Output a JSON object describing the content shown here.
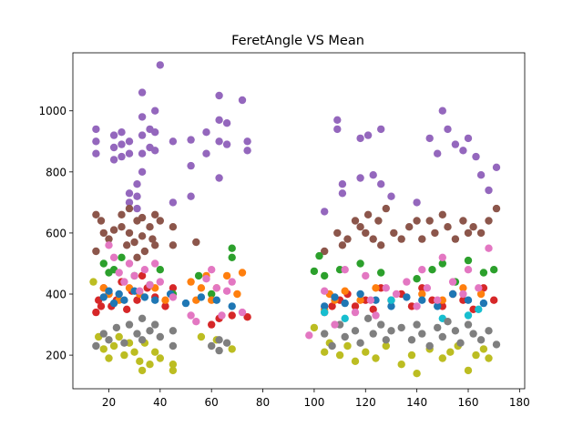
{
  "chart_data": {
    "type": "scatter",
    "title": "FeretAngle VS Mean",
    "xlabel": "",
    "ylabel": "",
    "xlim": [
      6,
      182
    ],
    "ylim": [
      90,
      1190
    ],
    "xticks": [
      20,
      40,
      60,
      80,
      100,
      120,
      140,
      160,
      180
    ],
    "yticks": [
      200,
      400,
      600,
      800,
      1000
    ],
    "grid": false,
    "legend": "none",
    "colors": [
      "#9467bd",
      "#8c564b",
      "#d62728",
      "#2ca02c",
      "#ff7f0e",
      "#1f77b4",
      "#bcbd22",
      "#17becf",
      "#7f7f7f",
      "#e377c2"
    ],
    "series": [
      {
        "color": "#9467bd",
        "x": [
          15,
          15,
          15,
          22,
          22,
          22,
          25,
          25,
          25,
          28,
          28,
          28,
          28,
          31,
          31,
          31,
          33,
          33,
          33,
          33,
          33,
          36,
          36,
          38,
          38,
          38,
          40,
          45,
          45,
          52,
          52,
          52,
          58,
          58,
          63,
          63,
          63,
          63,
          66,
          66,
          72,
          74,
          74,
          104,
          109,
          109,
          111,
          111,
          118,
          118,
          121,
          123,
          126,
          126,
          130,
          140,
          145,
          148,
          150,
          152,
          155,
          158,
          160,
          163,
          165,
          168,
          171
        ],
        "y": [
          940,
          900,
          860,
          920,
          880,
          840,
          930,
          890,
          850,
          900,
          860,
          730,
          700,
          760,
          720,
          680,
          1060,
          980,
          920,
          860,
          800,
          940,
          880,
          1000,
          930,
          870,
          1150,
          900,
          700,
          905,
          820,
          720,
          930,
          860,
          1050,
          970,
          900,
          780,
          960,
          890,
          1035,
          900,
          870,
          670,
          970,
          940,
          760,
          730,
          910,
          780,
          920,
          790,
          940,
          760,
          720,
          700,
          910,
          860,
          1000,
          940,
          890,
          870,
          910,
          850,
          790,
          740,
          815
        ]
      },
      {
        "color": "#8c564b",
        "x": [
          15,
          15,
          17,
          18,
          20,
          22,
          25,
          25,
          27,
          28,
          28,
          30,
          31,
          31,
          33,
          33,
          34,
          36,
          37,
          38,
          38,
          40,
          45,
          45,
          54,
          104,
          109,
          111,
          113,
          116,
          118,
          120,
          121,
          123,
          125,
          126,
          128,
          131,
          134,
          137,
          140,
          142,
          145,
          147,
          150,
          152,
          155,
          158,
          160,
          162,
          165,
          168,
          171
        ],
        "y": [
          660,
          540,
          640,
          600,
          580,
          610,
          660,
          620,
          560,
          680,
          600,
          570,
          640,
          520,
          650,
          590,
          540,
          620,
          580,
          660,
          560,
          640,
          620,
          560,
          570,
          540,
          600,
          560,
          580,
          640,
          620,
          600,
          660,
          580,
          640,
          560,
          680,
          600,
          580,
          620,
          640,
          580,
          640,
          600,
          660,
          620,
          580,
          640,
          600,
          620,
          600,
          640,
          680
        ]
      },
      {
        "color": "#d62728",
        "x": [
          15,
          16,
          17,
          18,
          20,
          21,
          23,
          25,
          27,
          29,
          31,
          33,
          35,
          38,
          42,
          45,
          60,
          63,
          68,
          74,
          104,
          107,
          110,
          113,
          116,
          120,
          123,
          126,
          130,
          134,
          138,
          142,
          146,
          150,
          154,
          158,
          162,
          166,
          170
        ],
        "y": [
          340,
          380,
          360,
          420,
          400,
          360,
          380,
          440,
          350,
          410,
          380,
          460,
          420,
          390,
          360,
          420,
          300,
          320,
          330,
          325,
          340,
          360,
          380,
          400,
          360,
          380,
          350,
          420,
          380,
          400,
          360,
          420,
          380,
          360,
          400,
          380,
          350,
          420,
          380
        ]
      },
      {
        "color": "#2ca02c",
        "x": [
          18,
          20,
          22,
          25,
          30,
          36,
          40,
          45,
          55,
          60,
          68,
          68,
          100,
          102,
          104,
          110,
          118,
          126,
          140,
          146,
          150,
          155,
          160,
          166,
          170
        ],
        "y": [
          500,
          470,
          480,
          520,
          460,
          430,
          480,
          400,
          460,
          400,
          550,
          520,
          475,
          525,
          460,
          480,
          500,
          470,
          450,
          480,
          500,
          440,
          510,
          470,
          480
        ]
      },
      {
        "color": "#ff7f0e",
        "x": [
          18,
          20,
          24,
          28,
          32,
          38,
          42,
          52,
          54,
          56,
          58,
          60,
          62,
          66,
          70,
          72,
          104,
          106,
          108,
          112,
          118,
          124,
          142,
          150,
          158,
          165
        ],
        "y": [
          420,
          400,
          380,
          420,
          400,
          420,
          380,
          440,
          380,
          420,
          460,
          380,
          420,
          460,
          400,
          470,
          350,
          400,
          380,
          410,
          380,
          420,
          400,
          380,
          420,
          400
        ]
      },
      {
        "color": "#1f77b4",
        "x": [
          18,
          20,
          22,
          24,
          26,
          30,
          34,
          38,
          44,
          50,
          56,
          62,
          68,
          104,
          108,
          112,
          118,
          124,
          130,
          136,
          142,
          148,
          154,
          160,
          166
        ],
        "y": [
          390,
          410,
          370,
          400,
          380,
          410,
          390,
          380,
          400,
          370,
          390,
          380,
          360,
          360,
          390,
          370,
          400,
          380,
          360,
          390,
          380,
          360,
          400,
          380,
          370
        ]
      },
      {
        "color": "#bcbd22",
        "x": [
          14,
          16,
          18,
          20,
          22,
          24,
          26,
          28,
          30,
          32,
          33,
          34,
          36,
          38,
          40,
          45,
          45,
          56,
          62,
          68,
          100,
          104,
          106,
          110,
          113,
          116,
          120,
          124,
          128,
          134,
          138,
          140,
          145,
          150,
          153,
          156,
          160,
          163,
          166,
          168
        ],
        "y": [
          440,
          260,
          220,
          190,
          230,
          260,
          200,
          240,
          210,
          180,
          150,
          240,
          170,
          210,
          190,
          150,
          170,
          260,
          250,
          220,
          290,
          210,
          240,
          200,
          230,
          180,
          210,
          190,
          230,
          170,
          200,
          140,
          220,
          190,
          210,
          230,
          150,
          200,
          220,
          190
        ]
      },
      {
        "color": "#17becf",
        "x": [
          104,
          112,
          130,
          150,
          160,
          164
        ],
        "y": [
          340,
          320,
          380,
          320,
          330,
          350
        ]
      },
      {
        "color": "#7f7f7f",
        "x": [
          15,
          18,
          20,
          23,
          26,
          28,
          31,
          33,
          33,
          36,
          38,
          40,
          45,
          45,
          60,
          63,
          63,
          66,
          104,
          107,
          110,
          112,
          116,
          118,
          121,
          123,
          126,
          128,
          130,
          134,
          138,
          140,
          142,
          145,
          148,
          150,
          152,
          155,
          157,
          160,
          162,
          165,
          168,
          171
        ],
        "y": [
          230,
          270,
          250,
          290,
          240,
          300,
          270,
          320,
          250,
          280,
          300,
          260,
          230,
          280,
          230,
          250,
          215,
          240,
          270,
          230,
          300,
          260,
          280,
          240,
          320,
          270,
          300,
          250,
          280,
          290,
          250,
          300,
          270,
          230,
          290,
          260,
          310,
          280,
          240,
          300,
          270,
          250,
          280,
          235
        ]
      },
      {
        "color": "#e377c2",
        "x": [
          20,
          22,
          24,
          26,
          28,
          30,
          32,
          34,
          36,
          38,
          40,
          45,
          52,
          54,
          58,
          60,
          62,
          64,
          66,
          68,
          72,
          98,
          104,
          108,
          112,
          116,
          120,
          122,
          124,
          128,
          132,
          136,
          140,
          142,
          144,
          148,
          150,
          154,
          158,
          160,
          164,
          168
        ],
        "y": [
          560,
          520,
          470,
          440,
          500,
          460,
          410,
          480,
          430,
          500,
          440,
          390,
          330,
          310,
          450,
          480,
          420,
          330,
          410,
          440,
          340,
          265,
          410,
          300,
          480,
          340,
          460,
          380,
          330,
          420,
          400,
          440,
          360,
          480,
          420,
          380,
          520,
          440,
          400,
          480,
          420,
          550
        ]
      }
    ]
  }
}
